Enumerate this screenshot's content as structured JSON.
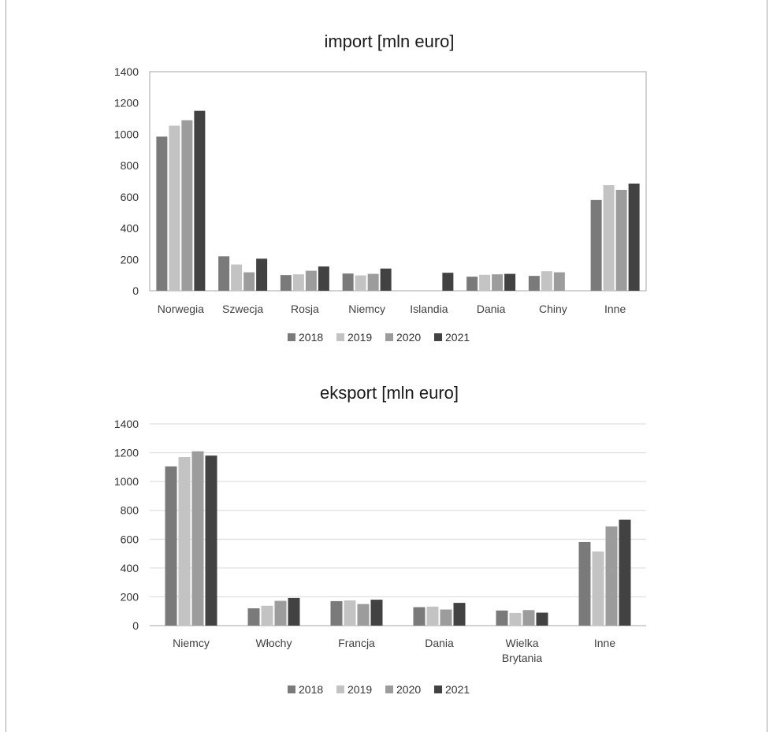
{
  "colors": {
    "2018": "#7a7a7a",
    "2019": "#c3c3c3",
    "2020": "#9c9c9c",
    "2021": "#424242",
    "grid": "#d9d9d9",
    "plot_border": "#a6a6a6",
    "frame": "#a6a6a6"
  },
  "chart_data": [
    {
      "type": "bar",
      "title": "import [mln euro]",
      "xlabel": "",
      "ylabel": "",
      "ylim": [
        0,
        1400
      ],
      "yticks": [
        "0",
        "200",
        "400",
        "600",
        "800",
        "1000",
        "1200",
        "1400"
      ],
      "grid": false,
      "legend_position": "bottom",
      "categories": [
        "Norwegia",
        "Szwecja",
        "Rosja",
        "Niemcy",
        "Islandia",
        "Dania",
        "Chiny",
        "Inne"
      ],
      "series": [
        {
          "name": "2018",
          "values": [
            985,
            220,
            100,
            110,
            0,
            90,
            95,
            580
          ]
        },
        {
          "name": "2019",
          "values": [
            1055,
            168,
            105,
            98,
            0,
            102,
            125,
            675
          ]
        },
        {
          "name": "2020",
          "values": [
            1090,
            118,
            128,
            108,
            0,
            105,
            118,
            645
          ]
        },
        {
          "name": "2021",
          "values": [
            1150,
            205,
            155,
            142,
            115,
            108,
            0,
            685
          ]
        }
      ]
    },
    {
      "type": "bar",
      "title": "eksport [mln euro]",
      "xlabel": "",
      "ylabel": "",
      "ylim": [
        0,
        1400
      ],
      "yticks": [
        "0",
        "200",
        "400",
        "600",
        "800",
        "1000",
        "1200",
        "1400"
      ],
      "grid": true,
      "legend_position": "bottom",
      "categories": [
        [
          "Niemcy"
        ],
        [
          "Włochy"
        ],
        [
          "Francja"
        ],
        [
          "Dania"
        ],
        [
          "Wielka",
          "Brytania"
        ],
        [
          "Inne"
        ]
      ],
      "series": [
        {
          "name": "2018",
          "values": [
            1105,
            120,
            170,
            128,
            105,
            580
          ]
        },
        {
          "name": "2019",
          "values": [
            1170,
            138,
            175,
            132,
            88,
            515
          ]
        },
        {
          "name": "2020",
          "values": [
            1210,
            172,
            150,
            112,
            108,
            688
          ]
        },
        {
          "name": "2021",
          "values": [
            1180,
            192,
            180,
            158,
            90,
            735
          ]
        }
      ]
    }
  ]
}
